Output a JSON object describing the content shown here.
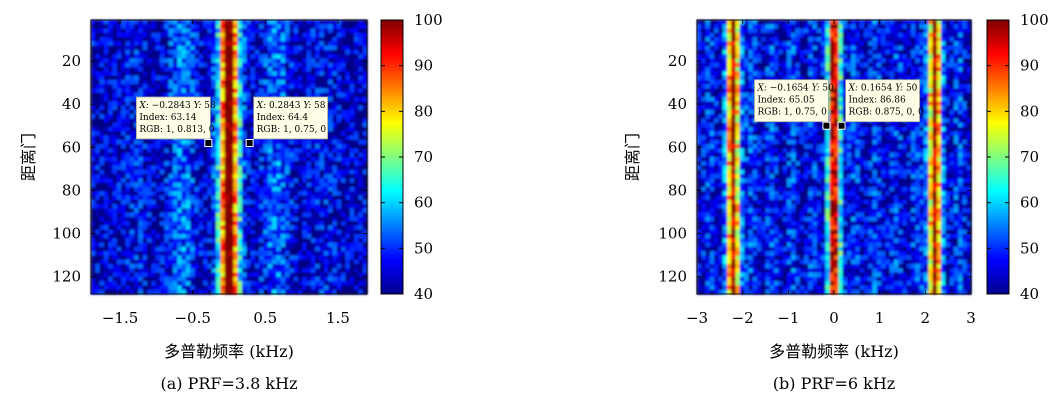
{
  "chart_data": [
    {
      "type": "heatmap",
      "title": "",
      "caption": "(a) PRF=3.8 kHz",
      "xlabel": "多普勒频率 (kHz)",
      "ylabel": "距离门",
      "xlim": [
        -1.9,
        1.9
      ],
      "ylim": [
        1,
        128
      ],
      "y_inverted": true,
      "xticks": [
        -1.5,
        -0.5,
        0.5,
        1.5
      ],
      "xtick_labels": [
        "−1.5",
        "−0.5",
        "0.5",
        "1.5"
      ],
      "yticks": [
        20,
        40,
        60,
        80,
        100,
        120
      ],
      "ytick_labels": [
        "20",
        "40",
        "60",
        "80",
        "100",
        "120"
      ],
      "colorbar": {
        "min": 40,
        "max": 100,
        "ticks": [
          40,
          50,
          60,
          70,
          80,
          90,
          100
        ],
        "tick_labels": [
          "40",
          "50",
          "60",
          "70",
          "80",
          "90",
          "100"
        ],
        "colormap": "jet"
      },
      "band_centers_khz": [
        0
      ],
      "datatips": [
        {
          "x": -0.2843,
          "y": 58,
          "index": 63.14,
          "rgb": [
            1,
            0.813,
            0
          ],
          "lines": {
            "x_key": "X:",
            "x_val": "−0.2843",
            "y_key": "Y:",
            "y_val": "58",
            "index": "Index: 63.14",
            "rgb": "RGB: 1, 0.813, 0"
          }
        },
        {
          "x": 0.2843,
          "y": 58,
          "index": 64.4,
          "rgb": [
            1,
            0.75,
            0
          ],
          "lines": {
            "x_key": "X:",
            "x_val": "0.2843",
            "y_key": "Y:",
            "y_val": "58",
            "index": "Index: 64.4",
            "rgb": "RGB: 1, 0.75, 0"
          }
        }
      ]
    },
    {
      "type": "heatmap",
      "title": "",
      "caption": "(b) PRF=6 kHz",
      "xlabel": "多普勒频率 (kHz)",
      "ylabel": "距离门",
      "xlim": [
        -3,
        3
      ],
      "ylim": [
        1,
        128
      ],
      "y_inverted": true,
      "xticks": [
        -3,
        -2,
        -1,
        0,
        1,
        2,
        3
      ],
      "xtick_labels": [
        "−3",
        "−2",
        "−1",
        "0",
        "1",
        "2",
        "3"
      ],
      "yticks": [
        20,
        40,
        60,
        80,
        100,
        120
      ],
      "ytick_labels": [
        "20",
        "40",
        "60",
        "80",
        "100",
        "120"
      ],
      "colorbar": {
        "min": 40,
        "max": 100,
        "ticks": [
          40,
          50,
          60,
          70,
          80,
          90,
          100
        ],
        "tick_labels": [
          "40",
          "50",
          "60",
          "70",
          "80",
          "90",
          "100"
        ],
        "colormap": "jet"
      },
      "band_centers_khz": [
        -2.2,
        0,
        2.2
      ],
      "datatips": [
        {
          "x": -0.1654,
          "y": 50,
          "index": 65.05,
          "rgb": [
            1,
            0.75,
            0
          ],
          "lines": {
            "x_key": "X:",
            "x_val": "−0.1654",
            "y_key": "Y:",
            "y_val": "50",
            "index": "Index: 65.05",
            "rgb": "RGB: 1, 0.75, 0"
          }
        },
        {
          "x": 0.1654,
          "y": 50,
          "index": 86.86,
          "rgb": [
            0.875,
            0,
            0
          ],
          "lines": {
            "x_key": "X:",
            "x_val": "0.1654",
            "y_key": "Y:",
            "y_val": "50",
            "index": "Index: 86.86",
            "rgb": "RGB: 0.875, 0, 0"
          }
        }
      ]
    }
  ]
}
